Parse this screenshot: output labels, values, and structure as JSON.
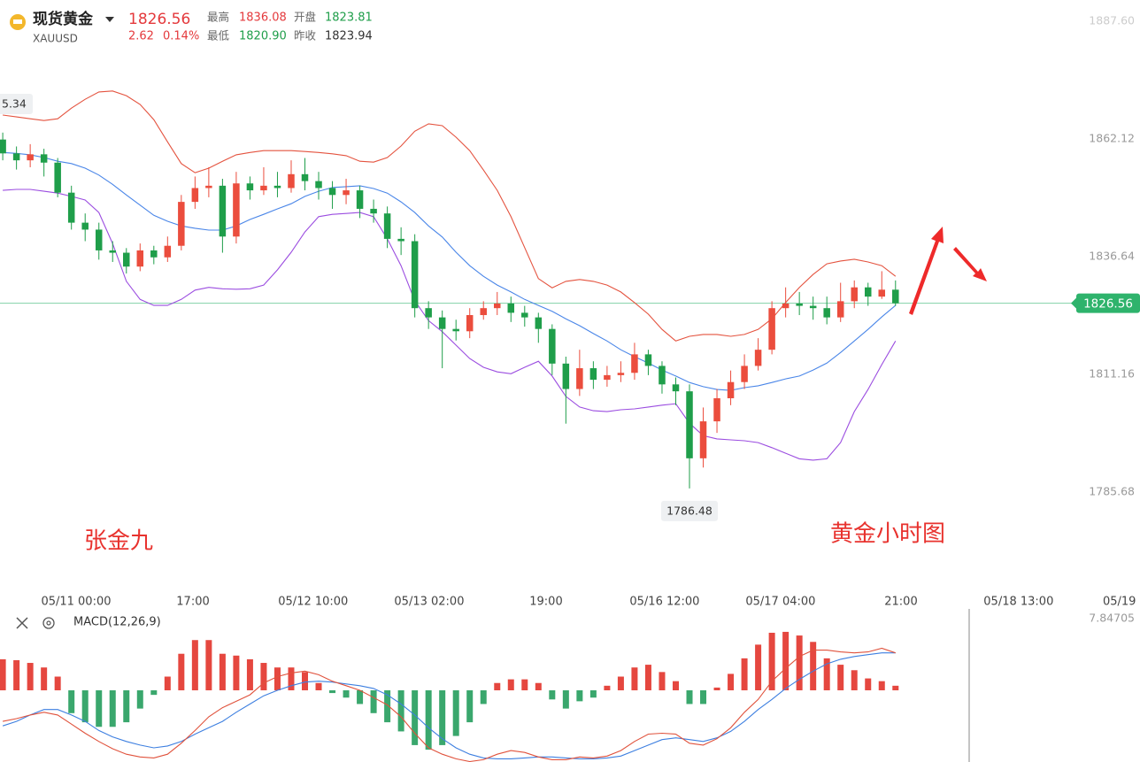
{
  "header": {
    "name": "现货黄金",
    "symbol": "XAUUSD",
    "price": "1826.56",
    "change": "2.62",
    "change_pct": "0.14%",
    "high_label": "最高",
    "high": "1836.08",
    "open_label": "开盘",
    "open": "1823.81",
    "low_label": "最低",
    "low": "1820.90",
    "prev_label": "昨收",
    "prev_close": "1823.94"
  },
  "chart_data": [
    {
      "type": "candlestick",
      "annotations": [
        "张金九",
        "黄金小时图"
      ],
      "clipped_label": "5.34",
      "xlim": [
        -0.2,
        82.8
      ],
      "xticks": [
        {
          "value": 5.34,
          "label": "05/11 00:00"
        },
        {
          "value": 13.85,
          "label": "17:00"
        },
        {
          "value": 22.6,
          "label": "05/12 10:00"
        },
        {
          "value": 31.05,
          "label": "05/13 02:00"
        },
        {
          "value": 39.56,
          "label": "19:00"
        },
        {
          "value": 48.19,
          "label": "05/16 12:00"
        },
        {
          "value": 56.63,
          "label": "05/17 04:00"
        },
        {
          "value": 65.4,
          "label": "21:00"
        },
        {
          "value": 73.96,
          "label": "05/18 13:00"
        },
        {
          "value": 81.3,
          "label": "05/19"
        }
      ],
      "ylim": [
        1769.6,
        1892.2
      ],
      "yticks": [
        {
          "value": 1887.6,
          "label": "1887.60"
        },
        1862.12,
        1836.64,
        1811.16,
        1785.68
      ],
      "up_color": "#eb4d3d",
      "down_color": "#1f9e4a",
      "last_price": 1826.56,
      "last_price_color": "#2eb36c",
      "open": [
        1862,
        1859,
        1857.5,
        1858.8,
        1857,
        1850.5,
        1844,
        1842.5,
        1838,
        1837.5,
        1834.5,
        1838,
        1836.5,
        1839,
        1848.5,
        1851.5,
        1852,
        1841,
        1852.5,
        1851,
        1852,
        1851.5,
        1854.5,
        1853,
        1851.5,
        1850,
        1851,
        1847,
        1846,
        1840.5,
        1840,
        1825.5,
        1823.5,
        1821,
        1820.5,
        1824,
        1825.5,
        1826.5,
        1824.5,
        1823.5,
        1821,
        1813.5,
        1808,
        1812.5,
        1810,
        1811,
        1811.5,
        1815.5,
        1813,
        1809,
        1807.5,
        1793,
        1801,
        1806,
        1809.5,
        1813,
        1816.5,
        1825.5,
        1826.5,
        1826,
        1825.5,
        1823.5,
        1827,
        1830,
        1828,
        1829.5
      ],
      "high": [
        1863.5,
        1860.5,
        1861,
        1860,
        1858,
        1852,
        1846,
        1844,
        1840,
        1838.5,
        1839.5,
        1839,
        1841,
        1850,
        1854,
        1856,
        1853.5,
        1855,
        1854,
        1856,
        1855,
        1857.5,
        1858,
        1855,
        1853,
        1853.5,
        1852,
        1849,
        1847.5,
        1843,
        1841.5,
        1827,
        1825,
        1823,
        1825.5,
        1827,
        1829,
        1828,
        1826,
        1824.5,
        1822,
        1815,
        1816.5,
        1814,
        1813,
        1814,
        1818,
        1816.5,
        1814,
        1810.5,
        1809,
        1804,
        1808,
        1812,
        1815.5,
        1819,
        1827,
        1830,
        1829,
        1828,
        1828,
        1831,
        1831.5,
        1831,
        1833.5,
        1831.5
      ],
      "low": [
        1857.5,
        1855.5,
        1856,
        1854,
        1849.5,
        1842.5,
        1840,
        1836,
        1835.5,
        1833,
        1833.5,
        1835,
        1835.5,
        1838,
        1847,
        1849.5,
        1837.5,
        1839.5,
        1849,
        1850,
        1849.5,
        1850.5,
        1851,
        1849,
        1847,
        1848,
        1845,
        1844,
        1838.5,
        1837,
        1823.5,
        1821,
        1812.5,
        1818.5,
        1819,
        1823,
        1824,
        1822.5,
        1821.5,
        1818,
        1811,
        1800.5,
        1806.5,
        1808,
        1808.5,
        1809.5,
        1810,
        1811,
        1807,
        1804.5,
        1786.48,
        1791,
        1798.5,
        1804.5,
        1808,
        1812,
        1815.5,
        1823.5,
        1824,
        1823,
        1822,
        1822.5,
        1825.5,
        1826,
        1827.5,
        1826
      ],
      "close": [
        1859,
        1857.5,
        1858.8,
        1857,
        1850.5,
        1844,
        1842.5,
        1838,
        1837.5,
        1834.5,
        1838,
        1836.5,
        1839,
        1848.5,
        1851.5,
        1852,
        1841,
        1852.5,
        1851,
        1852,
        1851.5,
        1854.5,
        1853,
        1851.5,
        1850,
        1851,
        1847,
        1846,
        1840.5,
        1840,
        1825.5,
        1823.5,
        1821,
        1820.5,
        1824,
        1825.5,
        1826.5,
        1824.5,
        1823.5,
        1821,
        1813.5,
        1808,
        1812.5,
        1810,
        1811,
        1811.5,
        1815.5,
        1813,
        1809,
        1807.5,
        1793,
        1801,
        1806,
        1809.5,
        1813,
        1816.5,
        1825.5,
        1826.5,
        1826,
        1825.5,
        1823.5,
        1827,
        1830,
        1828,
        1829.5,
        1826.56
      ],
      "bands": [
        {
          "color": "#e4533f",
          "values": [
            1867.3,
            1866.9,
            1866.5,
            1866.1,
            1866.5,
            1868.8,
            1870.7,
            1872.3,
            1872.5,
            1871.5,
            1869.6,
            1866.3,
            1861.5,
            1856.8,
            1854.8,
            1855.8,
            1857.3,
            1858.7,
            1859.2,
            1859.6,
            1859.6,
            1859.6,
            1859.4,
            1859.2,
            1858.9,
            1858.5,
            1857.3,
            1857.1,
            1858.1,
            1860.6,
            1863.8,
            1865.4,
            1865,
            1862.5,
            1859.6,
            1855.4,
            1851,
            1845.3,
            1838.6,
            1831.9,
            1829.9,
            1831.3,
            1831.7,
            1831.3,
            1830.5,
            1829,
            1826.7,
            1824.2,
            1820.9,
            1818.4,
            1819.4,
            1819.8,
            1819.8,
            1819.4,
            1819.8,
            1820.9,
            1823.2,
            1826.7,
            1830,
            1832.8,
            1835.1,
            1835.7,
            1836.1,
            1835.5,
            1834.7,
            1832.4
          ]
        },
        {
          "color": "#4a86e8",
          "values": [
            1859.2,
            1859,
            1858.7,
            1858.1,
            1857.3,
            1856.8,
            1855.8,
            1854.3,
            1852.3,
            1850,
            1847.8,
            1845.6,
            1844.3,
            1843.3,
            1842.8,
            1842.4,
            1842.4,
            1843.3,
            1844.7,
            1845.8,
            1847,
            1848.1,
            1849.7,
            1850.8,
            1851.6,
            1851.8,
            1852,
            1851.4,
            1850.4,
            1848.5,
            1846.2,
            1843.3,
            1840.9,
            1837.6,
            1834.7,
            1832.4,
            1830.5,
            1829,
            1827.4,
            1826.1,
            1824.8,
            1823.2,
            1821.7,
            1820,
            1818.4,
            1816.5,
            1815,
            1813.6,
            1812.1,
            1810.8,
            1809.4,
            1808.5,
            1807.9,
            1807.7,
            1808.3,
            1808.7,
            1809.4,
            1810.2,
            1810.8,
            1812.1,
            1813.6,
            1815.9,
            1818.4,
            1820.9,
            1823.6,
            1826.1
          ]
        },
        {
          "color": "#9b4de0",
          "values": [
            1851,
            1851.2,
            1851.2,
            1850.8,
            1850.4,
            1849.7,
            1848.9,
            1846.2,
            1839.5,
            1831.3,
            1827.4,
            1826.1,
            1826.1,
            1827.4,
            1829.4,
            1830,
            1829.7,
            1829.6,
            1829.7,
            1830.5,
            1833.8,
            1837.6,
            1842,
            1845.3,
            1845.8,
            1846,
            1846.2,
            1845.3,
            1840.5,
            1834.7,
            1827.1,
            1822.8,
            1820.4,
            1817.5,
            1814.6,
            1812.7,
            1811.7,
            1811.3,
            1812.7,
            1814,
            1810.8,
            1806.4,
            1804.1,
            1803.3,
            1803.1,
            1803.5,
            1803.7,
            1804.1,
            1804.5,
            1804.8,
            1800.6,
            1797.9,
            1797.2,
            1797,
            1796.8,
            1796.4,
            1795.3,
            1794.1,
            1792.9,
            1792.6,
            1792.9,
            1796.4,
            1803.1,
            1807.9,
            1813.3,
            1818.4
          ]
        }
      ]
    },
    {
      "type": "macd",
      "title": "MACD(12,26,9)",
      "xlim": [
        -0.2,
        82.8
      ],
      "ylim": [
        -7.85,
        8.72
      ],
      "yticks": [
        7.84705
      ],
      "pos_color": "#e5473f",
      "neg_color": "#3aa76d",
      "histogram": [
        3.4,
        3.3,
        3,
        2.5,
        1.5,
        -2.5,
        -3.5,
        -4,
        -4,
        -3.5,
        -2,
        -0.5,
        1.5,
        4,
        5.5,
        5.5,
        4,
        3.8,
        3.4,
        3,
        2.5,
        2.5,
        2,
        0.8,
        -0.3,
        -0.8,
        -1.5,
        -2.5,
        -3.5,
        -4.5,
        -6,
        -6.5,
        -6,
        -5,
        -3.5,
        -1.5,
        0.8,
        1.2,
        1.2,
        0.8,
        -1,
        -2,
        -1.2,
        -0.8,
        0.5,
        1.5,
        2.5,
        2.8,
        2,
        1,
        -1.5,
        -1.5,
        0.3,
        1.8,
        3.5,
        5,
        6.3,
        6.4,
        6,
        5.3,
        3.5,
        2.8,
        2.2,
        1.3,
        1,
        0.5
      ],
      "series": [
        {
          "color": "#3d7fe0",
          "values": [
            -3.9,
            -3.4,
            -2.7,
            -2.1,
            -2.1,
            -2.7,
            -3.4,
            -4.4,
            -5.1,
            -5.6,
            -6,
            -6.3,
            -6.1,
            -5.6,
            -4.8,
            -4.1,
            -3.4,
            -2.4,
            -1.5,
            -0.6,
            0,
            0.5,
            0.9,
            1,
            0.9,
            0.7,
            0.5,
            0.2,
            -0.5,
            -1.5,
            -2.7,
            -4.1,
            -5.3,
            -6.3,
            -7,
            -7.4,
            -7.5,
            -7.5,
            -7.4,
            -7.3,
            -7.3,
            -7.4,
            -7.5,
            -7.5,
            -7.4,
            -7.2,
            -6.6,
            -6,
            -5.4,
            -5.2,
            -5.4,
            -5.6,
            -5.2,
            -4.5,
            -3.4,
            -2.1,
            -1,
            0.2,
            1.2,
            2.1,
            2.9,
            3.4,
            3.7,
            3.9,
            4.1,
            4.1
          ]
        },
        {
          "color": "#e0523c",
          "values": [
            -3.4,
            -3.1,
            -2.7,
            -2.4,
            -2.7,
            -3.7,
            -4.7,
            -5.6,
            -6.4,
            -7,
            -7.3,
            -7.4,
            -7,
            -5.8,
            -4.4,
            -2.9,
            -1.9,
            -1.2,
            -0.5,
            0.8,
            1.5,
            1.9,
            2.1,
            1.7,
            1,
            0.5,
            0,
            -0.8,
            -1.6,
            -2.9,
            -4.7,
            -6.3,
            -7,
            -7.5,
            -7.8,
            -7.6,
            -7,
            -6.6,
            -6.8,
            -7.3,
            -7.6,
            -7.6,
            -7.3,
            -7.4,
            -7.2,
            -6.6,
            -5.6,
            -4.8,
            -4.7,
            -4.8,
            -5.8,
            -6,
            -5.3,
            -4.1,
            -2.4,
            -1,
            1,
            2.4,
            3.7,
            4.4,
            4.4,
            4.2,
            4.1,
            4.2,
            4.6,
            4.1
          ]
        }
      ]
    }
  ]
}
